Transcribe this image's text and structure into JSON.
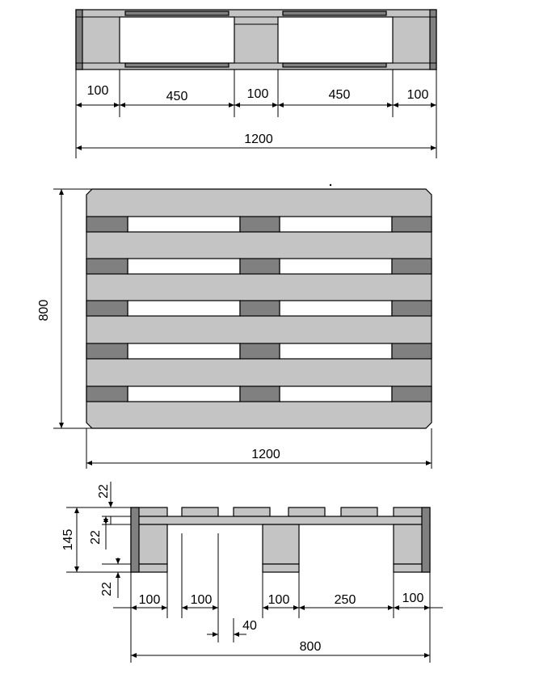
{
  "colors": {
    "board_light": "#c4c4c4",
    "board_dark": "#808080",
    "line": "#000000",
    "background": "#ffffff"
  },
  "top_view": {
    "dims": [
      "100",
      "450",
      "100",
      "450",
      "100"
    ],
    "overall": "1200"
  },
  "plan_view": {
    "height": "800",
    "width": "1200"
  },
  "side_view": {
    "vertical": {
      "total": "145",
      "deck": "22",
      "stringer": "22",
      "bottom": "22"
    },
    "dims": [
      "100",
      "100",
      "100",
      "250",
      "100"
    ],
    "gap": "40",
    "overall": "800"
  }
}
